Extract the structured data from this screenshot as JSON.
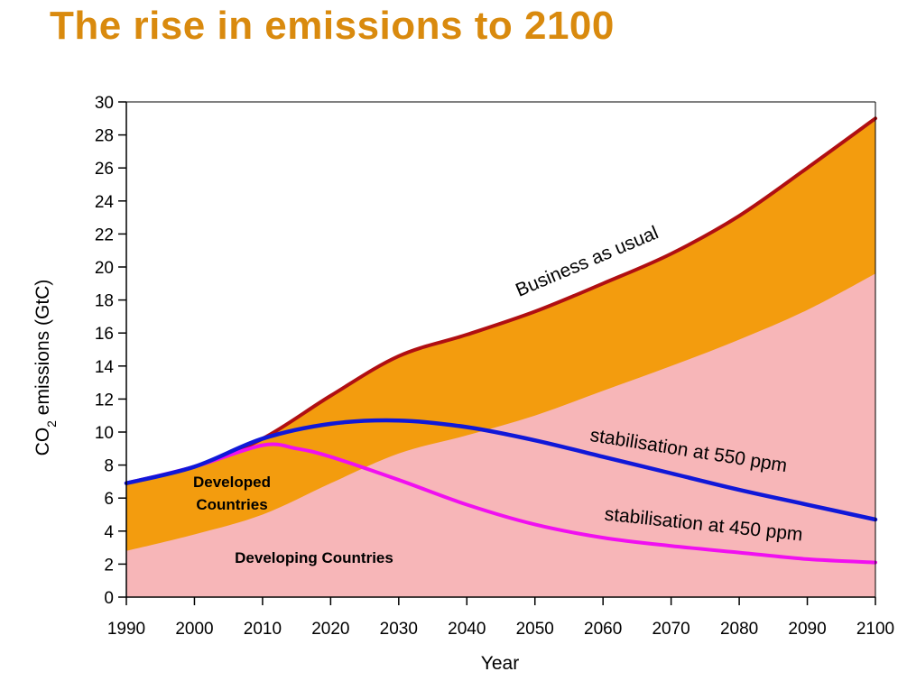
{
  "page": {
    "title": "The rise in emissions to 2100"
  },
  "chart_data": {
    "type": "area",
    "title": "The rise in emissions to 2100",
    "xlabel": "Year",
    "ylabel": "CO",
    "ylabel_sub": "2",
    "ylabel_tail": " emissions (GtC)",
    "xlim": [
      1990,
      2100
    ],
    "ylim": [
      0,
      30
    ],
    "x_ticks": [
      1990,
      2000,
      2010,
      2020,
      2030,
      2040,
      2050,
      2060,
      2070,
      2080,
      2090,
      2100
    ],
    "y_ticks": [
      0,
      2,
      4,
      6,
      8,
      10,
      12,
      14,
      16,
      18,
      20,
      22,
      24,
      26,
      28,
      30
    ],
    "colors": {
      "developed_area": "#f39c0e",
      "developing_area": "#f7b6b8",
      "business_as_usual": "#b00f12",
      "stab_550": "#1018d8",
      "stab_450": "#f010f0"
    },
    "x": [
      1990,
      2000,
      2010,
      2020,
      2030,
      2040,
      2050,
      2060,
      2070,
      2080,
      2090,
      2100
    ],
    "series": [
      {
        "name": "Developing Countries",
        "kind": "area",
        "values": [
          2.8,
          3.8,
          5.0,
          6.9,
          8.7,
          9.8,
          11.0,
          12.5,
          14.0,
          15.6,
          17.4,
          19.6
        ]
      },
      {
        "name": "Developed Countries",
        "kind": "area-top",
        "values": [
          6.9,
          7.9,
          9.6,
          12.2,
          14.6,
          15.9,
          17.3,
          19.0,
          20.8,
          23.1,
          26.0,
          29.0
        ]
      },
      {
        "name": "Business as usual",
        "kind": "line",
        "values": [
          6.9,
          7.9,
          9.6,
          12.2,
          14.6,
          15.9,
          17.3,
          19.0,
          20.8,
          23.1,
          26.0,
          29.0
        ]
      },
      {
        "name": "stabilisation at 550 ppm",
        "kind": "line",
        "values": [
          6.9,
          7.9,
          9.6,
          10.5,
          10.7,
          10.3,
          9.5,
          8.5,
          7.5,
          6.5,
          5.6,
          4.7
        ]
      },
      {
        "name": "stabilisation at 450 ppm",
        "kind": "line",
        "x": [
          1990,
          2000,
          2010,
          2015,
          2020,
          2030,
          2040,
          2050,
          2060,
          2070,
          2080,
          2090,
          2100
        ],
        "values": [
          6.9,
          7.9,
          9.2,
          9.0,
          8.5,
          7.1,
          5.6,
          4.4,
          3.6,
          3.1,
          2.7,
          2.3,
          2.1
        ]
      }
    ],
    "annotations": {
      "business_as_usual": "Business as usual",
      "stab_550": "stabilisation at 550 ppm",
      "stab_450": "stabilisation at 450 ppm",
      "developed_line1": "Developed",
      "developed_line2": "Countries",
      "developing": "Developing Countries"
    },
    "grid": false,
    "legend": "none"
  }
}
